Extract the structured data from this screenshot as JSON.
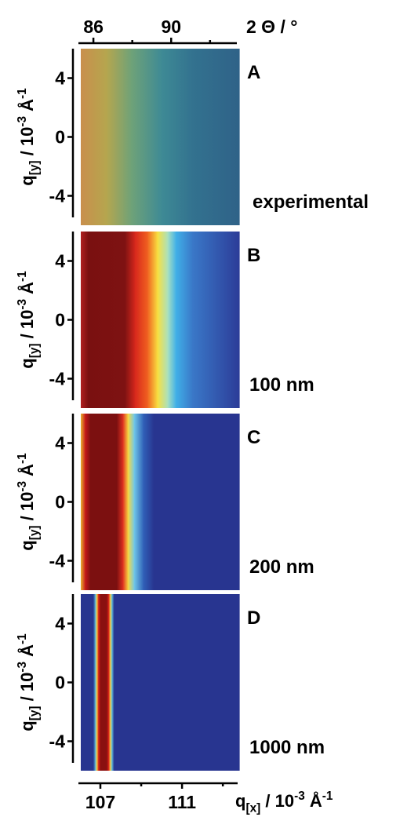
{
  "chart_data": {
    "type": "heatmap",
    "x_label": {
      "base": "q",
      "sub": "[x]",
      "mid": " / 10",
      "sup1": "-3",
      "unit": " Å",
      "sup2": "-1"
    },
    "xlim": [
      106.04,
      113.8
    ],
    "xticks": [
      107,
      111
    ],
    "xminor_ticks": [
      109,
      113
    ],
    "x2_label": "2 Θ / °",
    "x2lim": [
      85.35,
      93.5
    ],
    "x2ticks": [
      86,
      90
    ],
    "x2minor_ticks": [
      88,
      92
    ],
    "y_label": {
      "base": "q",
      "sub": "[y]",
      "mid": " / 10",
      "sup1": "-3",
      "unit": " Å",
      "sup2": "-1"
    },
    "ylim": [
      -6,
      6
    ],
    "yticks": [
      4,
      0,
      -4
    ],
    "panels": [
      {
        "label": "A",
        "annotation": "experimental",
        "stops": [
          {
            "x": 106.04,
            "color": "#c98f4c"
          },
          {
            "x": 107.3,
            "color": "#b5a64e"
          },
          {
            "x": 108.5,
            "color": "#6fa278"
          },
          {
            "x": 110.0,
            "color": "#3e8a95"
          },
          {
            "x": 111.5,
            "color": "#33728f"
          },
          {
            "x": 113.8,
            "color": "#2f6288"
          }
        ]
      },
      {
        "label": "B",
        "annotation": "100 nm",
        "stops": [
          {
            "x": 106.04,
            "color": "#b02020"
          },
          {
            "x": 106.4,
            "color": "#7a1010"
          },
          {
            "x": 108.2,
            "color": "#7e1212"
          },
          {
            "x": 108.7,
            "color": "#d8281c"
          },
          {
            "x": 109.3,
            "color": "#f06020"
          },
          {
            "x": 109.8,
            "color": "#f8e040"
          },
          {
            "x": 110.3,
            "color": "#a8e0c0"
          },
          {
            "x": 110.7,
            "color": "#40b0e8"
          },
          {
            "x": 111.5,
            "color": "#3a78c8"
          },
          {
            "x": 113.8,
            "color": "#2c3c98"
          }
        ]
      },
      {
        "label": "C",
        "annotation": "200 nm",
        "stops": [
          {
            "x": 106.04,
            "color": "#e8b030"
          },
          {
            "x": 106.25,
            "color": "#c81818"
          },
          {
            "x": 106.5,
            "color": "#7c1010"
          },
          {
            "x": 107.8,
            "color": "#7c1010"
          },
          {
            "x": 108.1,
            "color": "#e03020"
          },
          {
            "x": 108.35,
            "color": "#f8d840"
          },
          {
            "x": 108.65,
            "color": "#70c8e8"
          },
          {
            "x": 109.1,
            "color": "#3060b8"
          },
          {
            "x": 109.6,
            "color": "#283590"
          },
          {
            "x": 113.8,
            "color": "#283590"
          }
        ]
      },
      {
        "label": "D",
        "annotation": "1000 nm",
        "stops": [
          {
            "x": 106.04,
            "color": "#283590"
          },
          {
            "x": 106.65,
            "color": "#283590"
          },
          {
            "x": 106.75,
            "color": "#60c0e0"
          },
          {
            "x": 106.82,
            "color": "#f8d040"
          },
          {
            "x": 106.9,
            "color": "#d82018"
          },
          {
            "x": 107.0,
            "color": "#8a1010"
          },
          {
            "x": 107.3,
            "color": "#8a1010"
          },
          {
            "x": 107.4,
            "color": "#d82018"
          },
          {
            "x": 107.48,
            "color": "#f8d040"
          },
          {
            "x": 107.56,
            "color": "#60c0e0"
          },
          {
            "x": 107.66,
            "color": "#283590"
          },
          {
            "x": 113.8,
            "color": "#283590"
          }
        ]
      }
    ]
  }
}
